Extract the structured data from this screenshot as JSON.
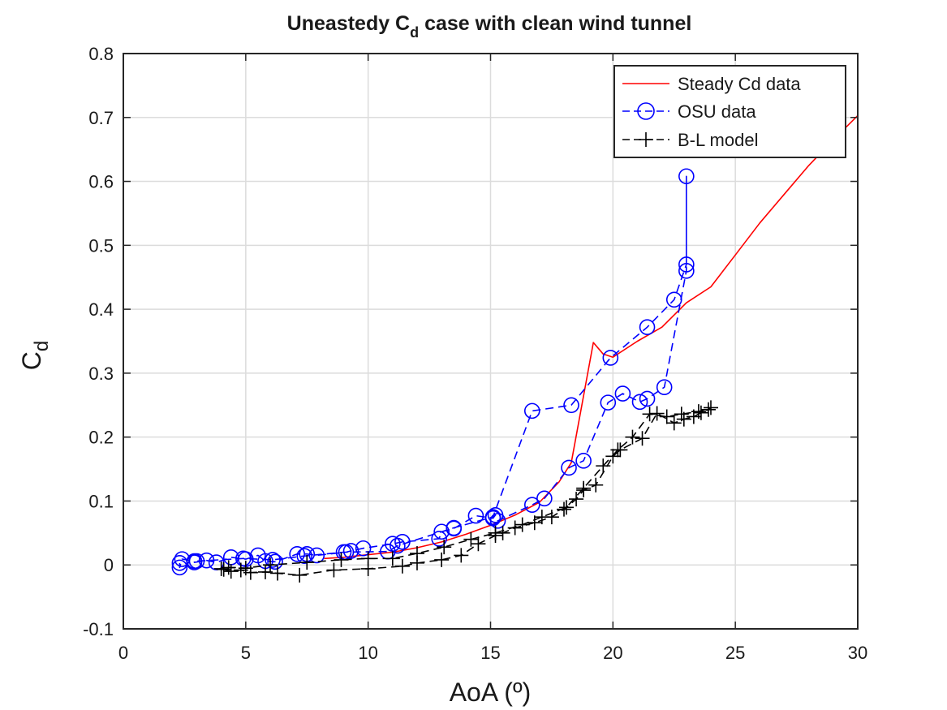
{
  "chart_data": {
    "type": "line",
    "title": "Uneastedy C",
    "title_sub": "d",
    "title_rest": " case with clean wind tunnel",
    "xlabel": "AoA (º)",
    "ylabel": "C",
    "ylabel_sub": "d",
    "xlim": [
      0,
      30
    ],
    "ylim": [
      -0.1,
      0.8
    ],
    "xticks": [
      0,
      5,
      10,
      15,
      20,
      25,
      30
    ],
    "xtick_labels": [
      "0",
      "5",
      "10",
      "15",
      "20",
      "25",
      "30"
    ],
    "yticks": [
      -0.1,
      0,
      0.1,
      0.2,
      0.3,
      0.4,
      0.5,
      0.6,
      0.7,
      0.8
    ],
    "ytick_labels": [
      "-0.1",
      "0",
      "0.1",
      "0.2",
      "0.3",
      "0.4",
      "0.5",
      "0.6",
      "0.7",
      "0.8"
    ],
    "grid": true,
    "legend_position": "top-right",
    "series": [
      {
        "name": "Steady Cd data",
        "color": "#ff0000",
        "line": "solid",
        "marker": "none",
        "points": [
          [
            8.2,
            0.01
          ],
          [
            9,
            0.012
          ],
          [
            10,
            0.016
          ],
          [
            11,
            0.02
          ],
          [
            12,
            0.027
          ],
          [
            13,
            0.036
          ],
          [
            14,
            0.048
          ],
          [
            15,
            0.062
          ],
          [
            16,
            0.078
          ],
          [
            17,
            0.098
          ],
          [
            17.8,
            0.13
          ],
          [
            18.3,
            0.16
          ],
          [
            19.2,
            0.348
          ],
          [
            19.6,
            0.33
          ],
          [
            20,
            0.325
          ],
          [
            21,
            0.35
          ],
          [
            22,
            0.372
          ],
          [
            23,
            0.41
          ],
          [
            24,
            0.435
          ],
          [
            25,
            0.485
          ],
          [
            26,
            0.535
          ],
          [
            27,
            0.58
          ],
          [
            28,
            0.625
          ],
          [
            29,
            0.665
          ],
          [
            30,
            0.703
          ]
        ]
      },
      {
        "name": "OSU data",
        "color": "#0000ff",
        "line": "dashed",
        "marker": "circle",
        "points": [
          [
            2.3,
            0.003
          ],
          [
            2.3,
            -0.004
          ],
          [
            2.4,
            0.009
          ],
          [
            2.9,
            0.006
          ],
          [
            2.9,
            0.004
          ],
          [
            3.4,
            0.007
          ],
          [
            3.8,
            0.004
          ],
          [
            4.4,
            0.012
          ],
          [
            5,
            0.009
          ],
          [
            5.5,
            0.015
          ],
          [
            5.8,
            0.006
          ],
          [
            6.2,
            0.005
          ],
          [
            7.1,
            0.017
          ],
          [
            7.5,
            0.017
          ],
          [
            7.9,
            0.015
          ],
          [
            9.1,
            0.02
          ],
          [
            9.3,
            0.022
          ],
          [
            9.8,
            0.026
          ],
          [
            11,
            0.033
          ],
          [
            11.4,
            0.036
          ],
          [
            12.9,
            0.041
          ],
          [
            13,
            0.052
          ],
          [
            13.5,
            0.057
          ],
          [
            14.4,
            0.077
          ],
          [
            15.1,
            0.073
          ],
          [
            15.2,
            0.078
          ],
          [
            15.3,
            0.069
          ],
          [
            16.7,
            0.094
          ],
          [
            17.2,
            0.104
          ],
          [
            18.2,
            0.152
          ],
          [
            18.8,
            0.163
          ],
          [
            19.8,
            0.254
          ],
          [
            20.4,
            0.268
          ],
          [
            21.1,
            0.255
          ],
          [
            21.4,
            0.26
          ],
          [
            22.1,
            0.278
          ],
          [
            23,
            0.46
          ],
          [
            23,
            0.608
          ],
          [
            23,
            0.47
          ],
          [
            22.5,
            0.415
          ],
          [
            21.4,
            0.372
          ],
          [
            19.9,
            0.324
          ],
          [
            18.3,
            0.25
          ],
          [
            16.7,
            0.241
          ],
          [
            15.1,
            0.075
          ],
          [
            13.5,
            0.058
          ],
          [
            11.2,
            0.03
          ],
          [
            10.8,
            0.021
          ],
          [
            9,
            0.02
          ],
          [
            7.4,
            0.014
          ],
          [
            6.1,
            0.008
          ],
          [
            4.9,
            0.01
          ],
          [
            3,
            0.006
          ]
        ]
      },
      {
        "name": "B-L model",
        "color": "#000000",
        "line": "dashed",
        "marker": "plus",
        "points": [
          [
            4.1,
            -0.007
          ],
          [
            4.4,
            -0.01
          ],
          [
            4.8,
            -0.008
          ],
          [
            5.2,
            -0.012
          ],
          [
            5.8,
            -0.011
          ],
          [
            6.3,
            -0.013
          ],
          [
            7.2,
            -0.016
          ],
          [
            8.6,
            -0.008
          ],
          [
            10,
            -0.006
          ],
          [
            11.4,
            -0.002
          ],
          [
            12,
            0.003
          ],
          [
            13,
            0.008
          ],
          [
            13.8,
            0.015
          ],
          [
            14.5,
            0.033
          ],
          [
            15.2,
            0.046
          ],
          [
            15.5,
            0.05
          ],
          [
            16,
            0.058
          ],
          [
            16.8,
            0.066
          ],
          [
            17.5,
            0.075
          ],
          [
            18,
            0.087
          ],
          [
            18.5,
            0.103
          ],
          [
            18.8,
            0.117
          ],
          [
            19.3,
            0.125
          ],
          [
            20,
            0.17
          ],
          [
            20.3,
            0.18
          ],
          [
            21.2,
            0.198
          ],
          [
            21.8,
            0.237
          ],
          [
            22.5,
            0.222
          ],
          [
            22.9,
            0.228
          ],
          [
            23.3,
            0.232
          ],
          [
            23.6,
            0.238
          ],
          [
            23.9,
            0.243
          ],
          [
            24,
            0.246
          ],
          [
            23.5,
            0.24
          ],
          [
            22.8,
            0.236
          ],
          [
            22.2,
            0.232
          ],
          [
            21.5,
            0.236
          ],
          [
            20.8,
            0.2
          ],
          [
            20.2,
            0.18
          ],
          [
            19.6,
            0.155
          ],
          [
            18.8,
            0.12
          ],
          [
            18.1,
            0.09
          ],
          [
            17.1,
            0.075
          ],
          [
            16.3,
            0.063
          ],
          [
            15.2,
            0.05
          ],
          [
            14.2,
            0.04
          ],
          [
            13.1,
            0.028
          ],
          [
            12,
            0.018
          ],
          [
            11,
            0.01
          ],
          [
            10,
            0.01
          ],
          [
            8.9,
            0.008
          ],
          [
            7.5,
            0.004
          ],
          [
            6,
            0
          ],
          [
            5,
            -0.005
          ],
          [
            4.3,
            -0.004
          ],
          [
            4,
            -0.006
          ]
        ]
      }
    ]
  }
}
